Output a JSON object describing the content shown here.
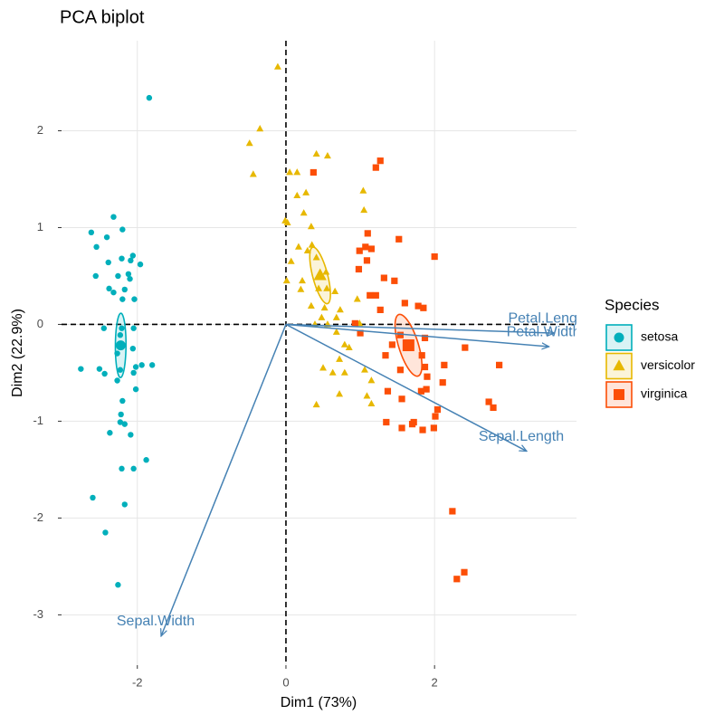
{
  "chart_data": {
    "type": "scatter",
    "title": "PCA biplot",
    "xlabel": "Dim1 (73%)",
    "ylabel": "Dim2 (22.9%)",
    "legend_title": "Species",
    "legend_position": "right",
    "grid": true,
    "xlim": [
      -3.02,
      3.91
    ],
    "ylim": [
      -3.52,
      2.93
    ],
    "xticks": [
      -2,
      0,
      2
    ],
    "yticks": [
      -3,
      -2,
      -1,
      0,
      1,
      2
    ],
    "series": [
      {
        "name": "setosa",
        "color": "#00AFBB",
        "marker": "circle",
        "x": [
          -1.84,
          -2.32,
          -2.62,
          -2.55,
          -2.2,
          -2.41,
          -2.06,
          -2.21,
          -2.09,
          -1.96,
          -2.39,
          -2.12,
          -2.56,
          -2.26,
          -2.1,
          -2.38,
          -2.32,
          -2.17,
          -2.2,
          -2.04,
          -2.45,
          -2.21,
          -2.05,
          -2.23,
          -2.21,
          -2.27,
          -2.06,
          -2.76,
          -2.51,
          -2.23,
          -2.02,
          -1.94,
          -1.8,
          -2.44,
          -2.27,
          -2.05,
          -2.02,
          -2.2,
          -2.22,
          -2.23,
          -2.37,
          -2.09,
          -1.88,
          -2.21,
          -2.05,
          -2.6,
          -2.17,
          -2.43,
          -2.26,
          -2.17
        ],
        "y": [
          2.34,
          1.11,
          0.95,
          0.8,
          0.98,
          0.9,
          0.71,
          0.68,
          0.66,
          0.62,
          0.64,
          0.52,
          0.5,
          0.5,
          0.47,
          0.37,
          0.33,
          0.36,
          0.26,
          0.26,
          -0.04,
          -0.04,
          -0.04,
          -0.11,
          -0.21,
          -0.3,
          -0.25,
          -0.46,
          -0.46,
          -0.47,
          -0.44,
          -0.42,
          -0.42,
          -0.51,
          -0.58,
          -0.5,
          -0.67,
          -0.79,
          -0.93,
          -1.01,
          -1.12,
          -1.14,
          -1.4,
          -1.49,
          -1.49,
          -1.79,
          -1.86,
          -2.15,
          -2.69,
          -1.03
        ]
      },
      {
        "name": "versicolor",
        "color": "#E7B800",
        "marker": "triangle",
        "x": [
          -0.11,
          -0.35,
          -0.49,
          -0.44,
          0.41,
          0.56,
          0.05,
          0.15,
          0.27,
          0.15,
          1.04,
          0.24,
          -0.01,
          0.02,
          0.34,
          1.05,
          0.17,
          0.29,
          0.07,
          0.35,
          0.41,
          0.01,
          0.22,
          0.44,
          0.2,
          0.55,
          0.66,
          0.34,
          0.52,
          0.73,
          0.48,
          0.68,
          0.56,
          0.99,
          0.79,
          0.85,
          0.72,
          1.06,
          0.5,
          0.79,
          0.63,
          1.15,
          0.72,
          1.09,
          1.15,
          0.41,
          0.39,
          0.54,
          0.96,
          0.68
        ],
        "y": [
          2.66,
          2.02,
          1.87,
          1.55,
          1.76,
          1.74,
          1.57,
          1.57,
          1.36,
          1.33,
          1.38,
          1.15,
          1.07,
          1.05,
          1.01,
          1.18,
          0.8,
          0.76,
          0.65,
          0.82,
          0.69,
          0.45,
          0.45,
          0.37,
          0.36,
          0.37,
          0.34,
          0.19,
          0.17,
          0.15,
          0.07,
          0.07,
          0,
          0.01,
          -0.21,
          -0.24,
          -0.36,
          -0.47,
          -0.45,
          -0.5,
          -0.5,
          -0.58,
          -0.72,
          -0.74,
          -0.82,
          -0.83,
          0,
          0.54,
          0.26,
          -0.08
        ]
      },
      {
        "name": "virginica",
        "color": "#FC4E07",
        "marker": "square",
        "x": [
          0.37,
          1.27,
          1.21,
          1.1,
          1.52,
          1.15,
          0.99,
          2.0,
          1.09,
          0.98,
          1.32,
          1.46,
          1.21,
          1.13,
          1.6,
          1.78,
          1.85,
          1.27,
          0.93,
          1.0,
          1.54,
          1.87,
          1.43,
          2.41,
          1.34,
          1.83,
          1.87,
          2.13,
          2.87,
          1.54,
          1.9,
          2.11,
          1.37,
          1.82,
          1.89,
          1.56,
          2.73,
          2.79,
          2.04,
          2.01,
          1.35,
          1.72,
          1.56,
          1.7,
          1.99,
          1.84,
          2.24,
          2.3,
          2.4,
          1.07
        ],
        "y": [
          1.57,
          1.69,
          1.62,
          0.94,
          0.88,
          0.78,
          0.76,
          0.7,
          0.66,
          0.57,
          0.48,
          0.45,
          0.3,
          0.3,
          0.22,
          0.19,
          0.17,
          0.15,
          0.01,
          -0.09,
          -0.11,
          -0.14,
          -0.21,
          -0.24,
          -0.32,
          -0.32,
          -0.44,
          -0.42,
          -0.42,
          -0.47,
          -0.54,
          -0.6,
          -0.69,
          -0.69,
          -0.67,
          -0.77,
          -0.8,
          -0.86,
          -0.88,
          -0.95,
          -1.01,
          -1.01,
          -1.07,
          -1.03,
          -1.07,
          -1.09,
          -1.93,
          -2.63,
          -2.56,
          0.8
        ]
      }
    ],
    "variables": [
      {
        "name": "Petal.Length",
        "x": 3.61,
        "y": -0.09
      },
      {
        "name": "Petal.Width",
        "x": 3.54,
        "y": -0.23
      },
      {
        "name": "Sepal.Length",
        "x": 3.24,
        "y": -1.31
      },
      {
        "name": "Sepal.Width",
        "x": -1.68,
        "y": -3.22
      }
    ],
    "variable_color": "#4682B4"
  }
}
